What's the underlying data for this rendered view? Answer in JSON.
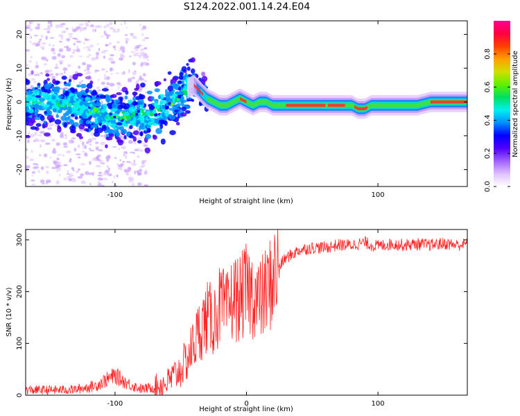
{
  "page": {
    "title": "S124.2022.001.14.24.E04"
  },
  "chart_data": [
    {
      "type": "heatmap",
      "xlabel": "Height of straight line (km)",
      "ylabel": "Frequency (Hz)",
      "xlim": [
        -168,
        168
      ],
      "ylim": [
        -25,
        24
      ],
      "xticks": [
        -100,
        0,
        100
      ],
      "xtick_labels": [
        "-100",
        "",
        "100"
      ],
      "yticks": [
        -20,
        -10,
        0,
        10,
        20
      ],
      "ridge": {
        "x": [
          -168,
          -150,
          -130,
          -110,
          -100,
          -90,
          -80,
          -75,
          -70,
          -60,
          -50,
          -45,
          -40,
          -35,
          -30,
          -25,
          -20,
          -15,
          -10,
          -5,
          0,
          5,
          10,
          15,
          20,
          30,
          40,
          50,
          60,
          70,
          75,
          80,
          85,
          90,
          95,
          100,
          110,
          120,
          130,
          140,
          150,
          160,
          168
        ],
        "y": [
          0,
          0,
          -1,
          -3,
          -5,
          -4,
          -3,
          -5,
          -3,
          -1,
          2,
          4,
          5,
          3,
          1,
          0,
          -1,
          -1,
          0,
          1,
          0,
          -1,
          0,
          0,
          -1,
          -1,
          -1,
          -1,
          -1,
          -1,
          -1,
          -1,
          -2,
          -2,
          -1,
          -1,
          -1,
          -1,
          -1,
          0,
          0,
          0,
          0
        ]
      },
      "colorbar": {
        "label": "Normalized spectral amplitude",
        "ticks": [
          "0.0",
          "0.2",
          "0.4",
          "0.6",
          "0.8"
        ],
        "range": [
          0,
          1
        ],
        "colormap": [
          "#ffffff",
          "#e0c0ff",
          "#a060ff",
          "#5000ff",
          "#0000ff",
          "#0090ff",
          "#00f0f0",
          "#00e060",
          "#60f000",
          "#d0e000",
          "#ffa000",
          "#ff4000",
          "#ff0040",
          "#ff0090"
        ]
      }
    },
    {
      "type": "line",
      "xlabel": "Height of straight line (km)",
      "ylabel": "SNR (10 * v/v)",
      "xlim": [
        -168,
        168
      ],
      "ylim": [
        0,
        320
      ],
      "xticks": [
        -100,
        0,
        100
      ],
      "xtick_labels": [
        "-100",
        "0",
        "100"
      ],
      "yticks": [
        0,
        100,
        200,
        300
      ],
      "series": [
        {
          "color": "#ff2020",
          "x": [
            -168,
            -150,
            -130,
            -115,
            -108,
            -100,
            -90,
            -80,
            -70,
            -60,
            -50,
            -45,
            -40,
            -35,
            -30,
            -25,
            -20,
            -15,
            -10,
            -5,
            0,
            5,
            10,
            15,
            20,
            25,
            30,
            40,
            50,
            60,
            70,
            80,
            90,
            95,
            100,
            110,
            120,
            130,
            140,
            150,
            160,
            168
          ],
          "y": [
            10,
            10,
            11,
            18,
            28,
            38,
            22,
            12,
            15,
            25,
            50,
            70,
            100,
            130,
            150,
            145,
            175,
            160,
            190,
            185,
            205,
            195,
            180,
            200,
            225,
            250,
            265,
            280,
            285,
            285,
            290,
            290,
            295,
            290,
            288,
            292,
            290,
            292,
            290,
            293,
            290,
            292
          ]
        }
      ]
    }
  ]
}
